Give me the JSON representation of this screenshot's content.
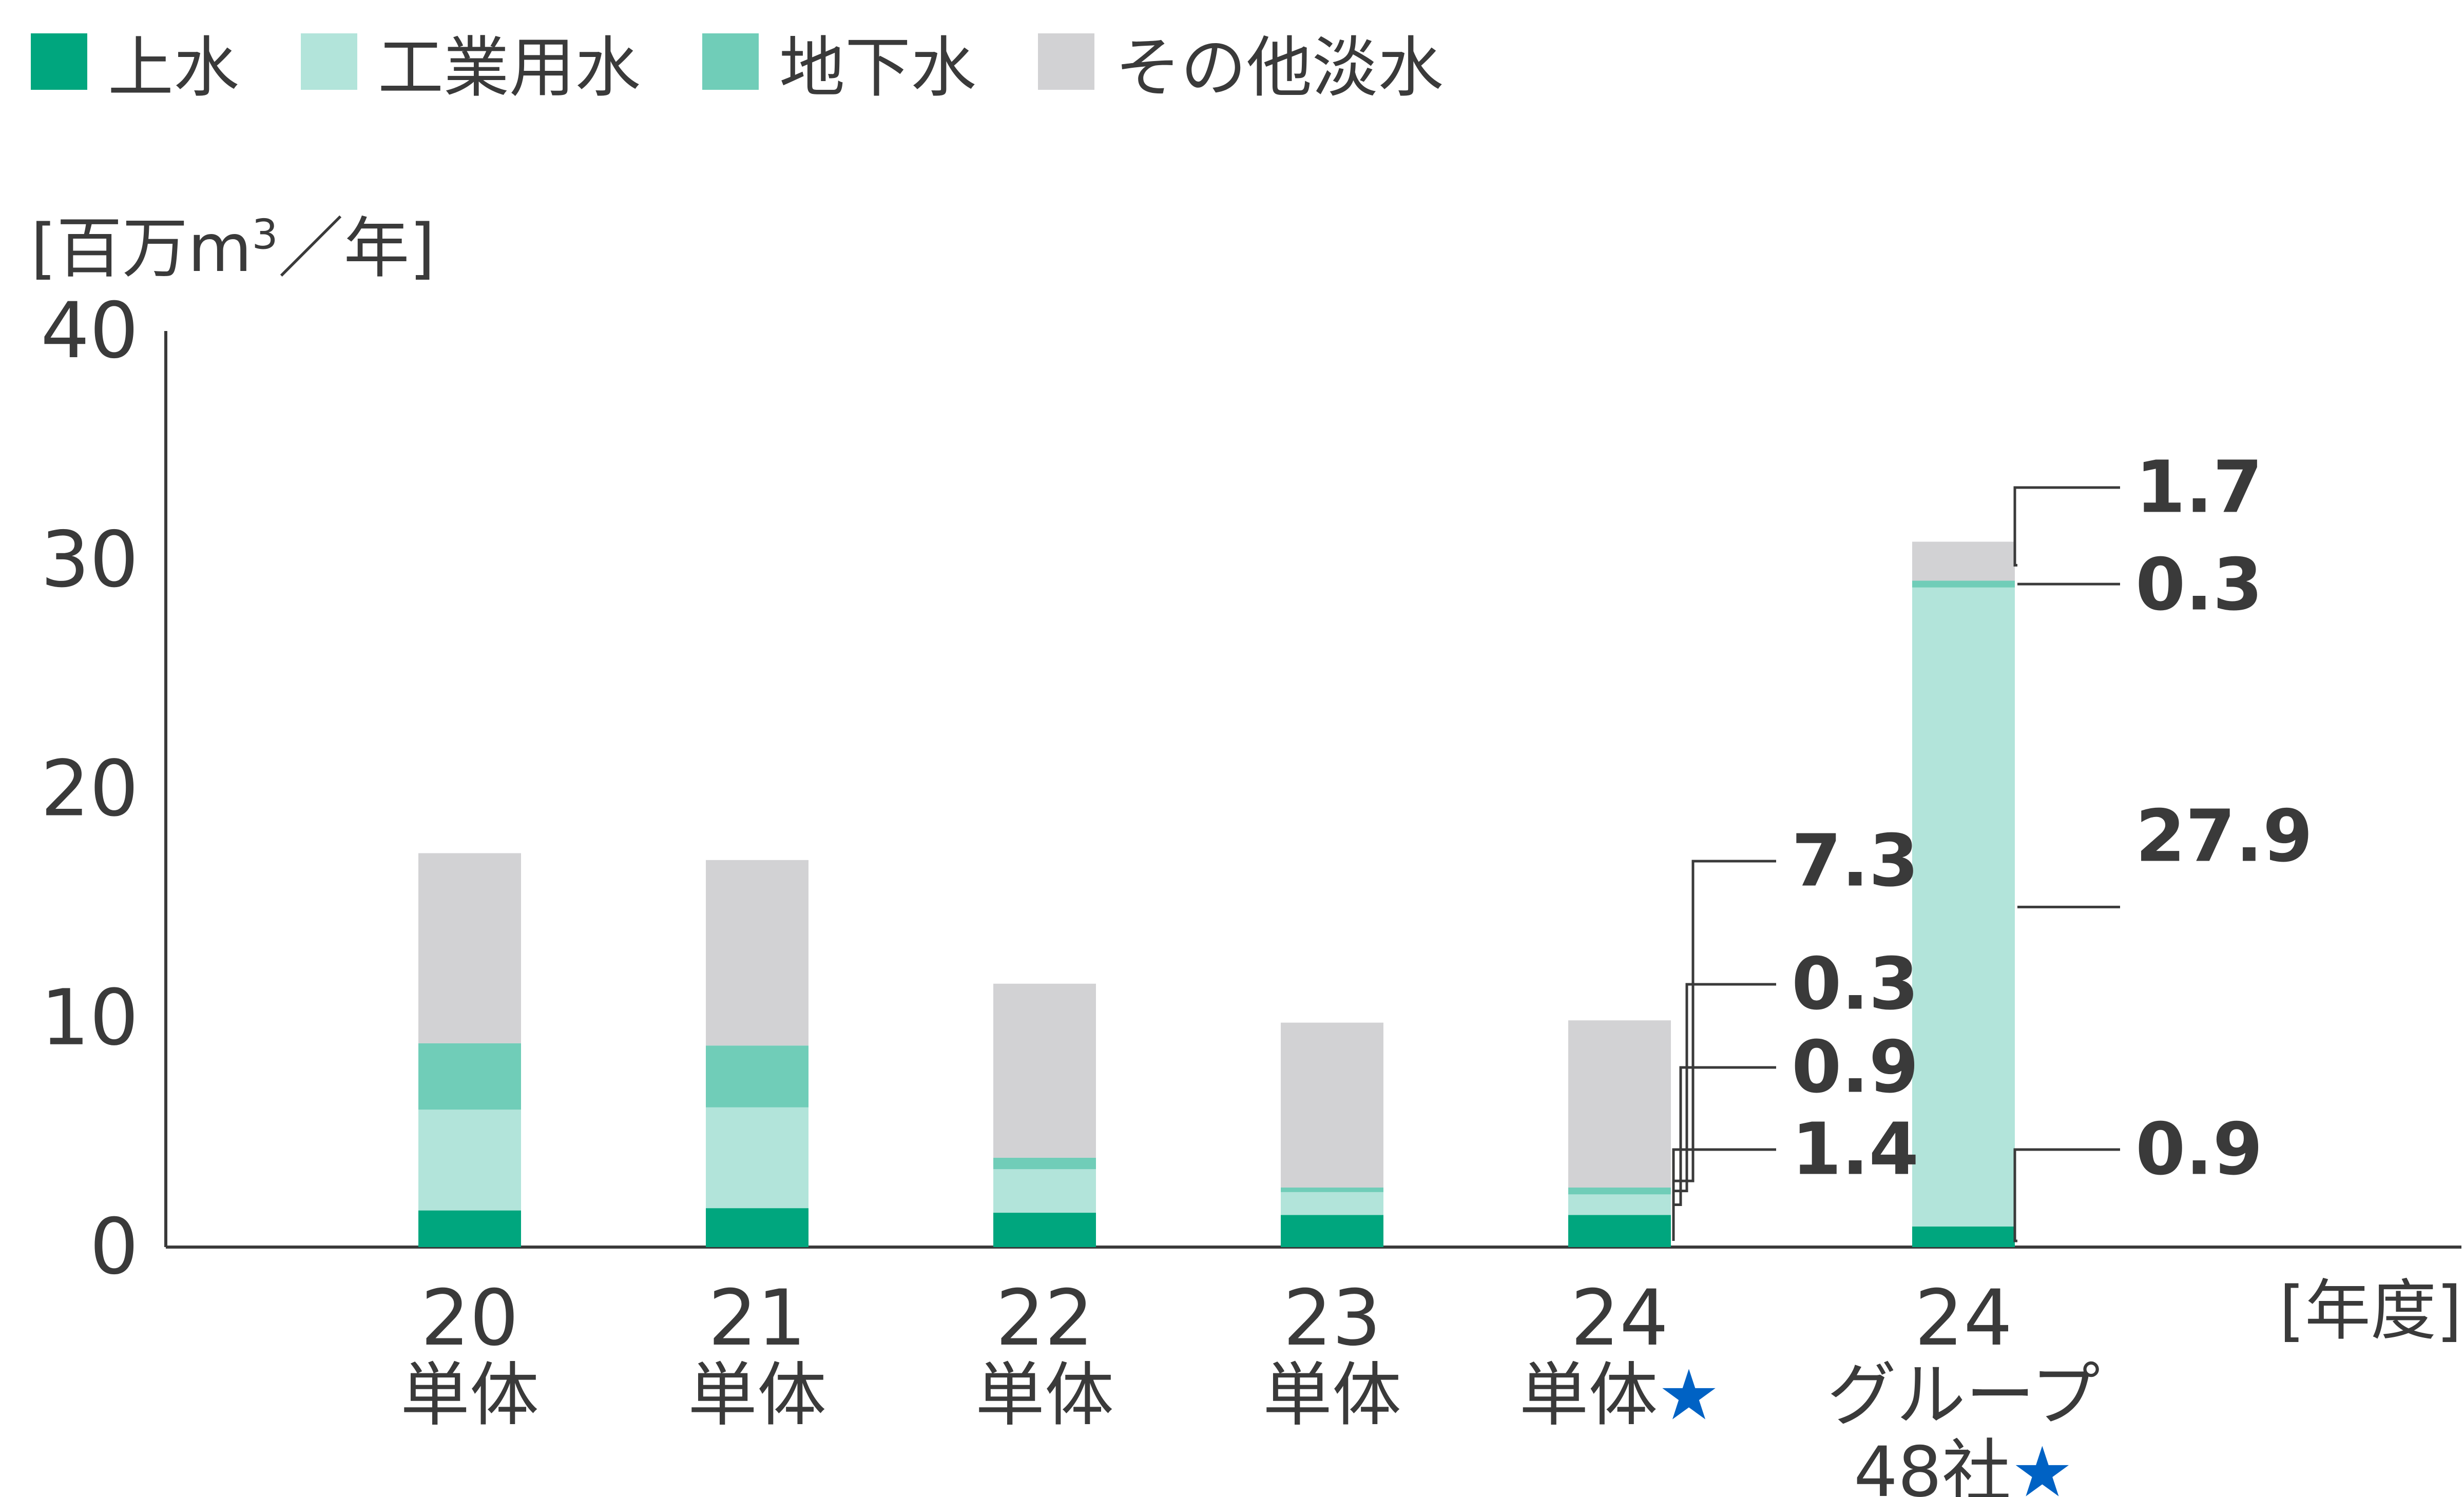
{
  "legend": [
    {
      "label": "上水",
      "color": "#00a67e"
    },
    {
      "label": "工業用水",
      "color": "#b2e4da"
    },
    {
      "label": "地下水",
      "color": "#70cdb8"
    },
    {
      "label": "その他淡水",
      "color": "#d2d2d4"
    }
  ],
  "y_unit": {
    "open": "[百万m",
    "sup": "3",
    "close": "／年]"
  },
  "x_unit": "[年度]",
  "star_color": "#0062c4",
  "chart_data": {
    "type": "bar",
    "stacked": true,
    "ylim": [
      0,
      40
    ],
    "yticks": [
      "0",
      "10",
      "20",
      "30",
      "40"
    ],
    "categories": [
      {
        "year": "20",
        "lines": [
          "単体"
        ],
        "star_line": -1
      },
      {
        "year": "21",
        "lines": [
          "単体"
        ],
        "star_line": -1
      },
      {
        "year": "22",
        "lines": [
          "単体"
        ],
        "star_line": -1
      },
      {
        "year": "23",
        "lines": [
          "単体"
        ],
        "star_line": -1
      },
      {
        "year": "24",
        "lines": [
          "単体"
        ],
        "star_line": 0
      },
      {
        "year": "24",
        "lines": [
          "グループ",
          "48社"
        ],
        "star_line": 1
      }
    ],
    "star": "★",
    "series": [
      {
        "name": "上水",
        "color": "#00a67e",
        "values": [
          1.6,
          1.7,
          1.5,
          1.4,
          1.4,
          0.9
        ]
      },
      {
        "name": "工業用水",
        "color": "#b2e4da",
        "values": [
          4.4,
          4.4,
          1.9,
          1.0,
          0.9,
          27.9
        ]
      },
      {
        "name": "地下水",
        "color": "#70cdb8",
        "values": [
          2.9,
          2.7,
          0.5,
          0.2,
          0.3,
          0.3
        ]
      },
      {
        "name": "その他淡水",
        "color": "#d2d2d4",
        "values": [
          8.3,
          8.1,
          7.6,
          7.2,
          7.3,
          1.7
        ]
      }
    ],
    "data_labels": [
      {
        "bar": 4,
        "series": 3,
        "text": "7.3"
      },
      {
        "bar": 4,
        "series": 2,
        "text": "0.3"
      },
      {
        "bar": 4,
        "series": 1,
        "text": "0.9"
      },
      {
        "bar": 4,
        "series": 0,
        "text": "1.4"
      },
      {
        "bar": 5,
        "series": 3,
        "text": "1.7"
      },
      {
        "bar": 5,
        "series": 2,
        "text": "0.3"
      },
      {
        "bar": 5,
        "series": 1,
        "text": "27.9"
      },
      {
        "bar": 5,
        "series": 0,
        "text": "0.9"
      }
    ]
  }
}
